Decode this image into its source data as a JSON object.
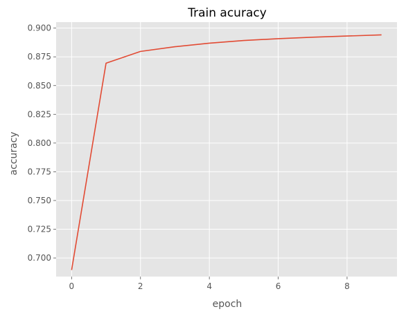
{
  "chart_data": {
    "type": "line",
    "title": "Train acuracy",
    "xlabel": "epoch",
    "ylabel": "accuracy",
    "xlim": [
      -0.45,
      9.45
    ],
    "ylim": [
      0.6838,
      0.9052
    ],
    "x_ticks": [
      0,
      2,
      4,
      6,
      8
    ],
    "y_ticks": [
      0.7,
      0.725,
      0.75,
      0.775,
      0.8,
      0.825,
      0.85,
      0.875,
      0.9
    ],
    "grid": true,
    "series": [
      {
        "x": [
          0,
          1,
          2,
          3,
          4,
          5,
          6,
          7,
          8,
          9
        ],
        "values": [
          0.6895,
          0.8695,
          0.8797,
          0.8838,
          0.8869,
          0.8892,
          0.8908,
          0.8921,
          0.8931,
          0.8941
        ]
      }
    ],
    "colors": {
      "plot_background": "#e5e5e5",
      "grid": "#ffffff",
      "line": "#e24a33",
      "tick_text": "#555555",
      "title_text": "#000000"
    }
  }
}
